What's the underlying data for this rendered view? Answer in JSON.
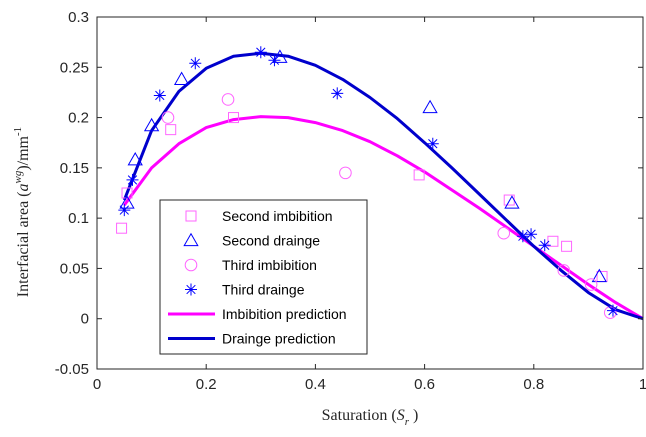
{
  "chart_data": {
    "type": "scatter",
    "title": "",
    "xlabel": {
      "main": "Saturation (",
      "sym": "S",
      "sub": "r",
      "close": ")"
    },
    "ylabel": {
      "main": "Interfacial area (",
      "sym": "a",
      "sup": "wg",
      "mid": ")/mm",
      "sup2": "-1"
    },
    "xlim": [
      0,
      1
    ],
    "ylim": [
      -0.05,
      0.3
    ],
    "xticks": [
      0,
      0.2,
      0.4,
      0.6,
      0.8,
      1
    ],
    "xtick_labels": [
      "0",
      "0.2",
      "0.4",
      "0.6",
      "0.8",
      "1"
    ],
    "yticks": [
      -0.05,
      0,
      0.05,
      0.1,
      0.15,
      0.2,
      0.25,
      0.3
    ],
    "ytick_labels": [
      "-0.05",
      "0",
      "0.05",
      "0.1",
      "0.15",
      "0.2",
      "0.25",
      "0.3"
    ],
    "grid": false,
    "legend_position": "lower-left",
    "series": [
      {
        "name": "Second imbibition",
        "marker": "square",
        "color": "#ff66ff",
        "x": [
          0.045,
          0.055,
          0.135,
          0.25,
          0.59,
          0.755,
          0.835,
          0.86,
          0.925
        ],
        "y": [
          0.09,
          0.125,
          0.188,
          0.2,
          0.143,
          0.118,
          0.077,
          0.072,
          0.042
        ]
      },
      {
        "name": "Second drainge",
        "marker": "triangle",
        "color": "#0000ff",
        "x": [
          0.055,
          0.07,
          0.1,
          0.155,
          0.335,
          0.61,
          0.76,
          0.92
        ],
        "y": [
          0.115,
          0.158,
          0.192,
          0.238,
          0.26,
          0.21,
          0.115,
          0.042
        ]
      },
      {
        "name": "Third imbibition",
        "marker": "circle",
        "color": "#ff66ff",
        "x": [
          0.13,
          0.24,
          0.455,
          0.745,
          0.855,
          0.905,
          0.94
        ],
        "y": [
          0.2,
          0.218,
          0.145,
          0.085,
          0.048,
          0.034,
          0.006
        ]
      },
      {
        "name": "Third draing​e",
        "marker": "asterisk",
        "color": "#0000ff",
        "x": [
          0.05,
          0.065,
          0.115,
          0.18,
          0.3,
          0.325,
          0.44,
          0.615,
          0.78,
          0.795,
          0.82,
          0.945
        ],
        "y": [
          0.108,
          0.138,
          0.222,
          0.254,
          0.265,
          0.257,
          0.224,
          0.174,
          0.082,
          0.084,
          0.073,
          0.008
        ]
      },
      {
        "name": "Imbibition prediction",
        "line": true,
        "color": "#ff00ff",
        "x": [
          0.05,
          0.1,
          0.15,
          0.2,
          0.25,
          0.3,
          0.35,
          0.4,
          0.45,
          0.5,
          0.55,
          0.6,
          0.65,
          0.7,
          0.75,
          0.8,
          0.85,
          0.9,
          0.95,
          1.0
        ],
        "y": [
          0.113,
          0.15,
          0.174,
          0.19,
          0.198,
          0.201,
          0.2,
          0.195,
          0.187,
          0.176,
          0.162,
          0.146,
          0.128,
          0.11,
          0.091,
          0.072,
          0.053,
          0.034,
          0.016,
          0.0
        ]
      },
      {
        "name": "Drainge prediction",
        "line": true,
        "color": "#0000cc",
        "x": [
          0.05,
          0.1,
          0.15,
          0.2,
          0.25,
          0.3,
          0.35,
          0.4,
          0.45,
          0.5,
          0.55,
          0.6,
          0.65,
          0.7,
          0.75,
          0.8,
          0.85,
          0.9,
          0.95,
          1.0
        ],
        "y": [
          0.118,
          0.187,
          0.226,
          0.249,
          0.261,
          0.264,
          0.261,
          0.252,
          0.238,
          0.22,
          0.199,
          0.175,
          0.15,
          0.124,
          0.098,
          0.072,
          0.048,
          0.026,
          0.009,
          0.0
        ]
      }
    ]
  }
}
